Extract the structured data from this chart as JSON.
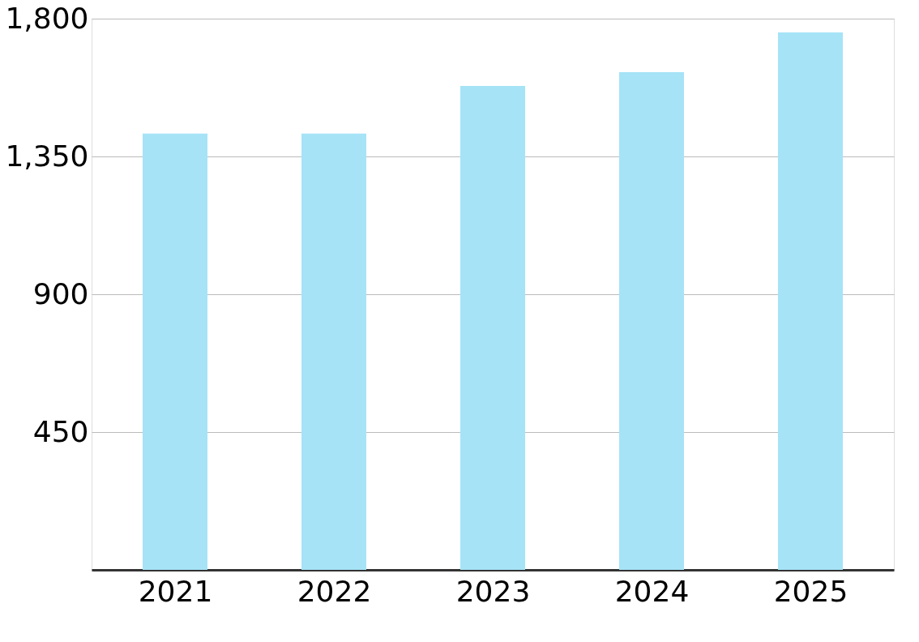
{
  "chart_data": {
    "type": "bar",
    "categories": [
      "2021",
      "2022",
      "2023",
      "2024",
      "2025"
    ],
    "values": [
      1425,
      1425,
      1580,
      1625,
      1755
    ],
    "color": "#a6e3f7",
    "ylim": [
      0,
      1800
    ],
    "yticks": [
      {
        "value": 0,
        "label": null
      },
      {
        "value": 450,
        "label": "450"
      },
      {
        "value": 900,
        "label": "900"
      },
      {
        "value": 1350,
        "label": "1,350"
      },
      {
        "value": 1800,
        "label": "1,800"
      }
    ],
    "grid": "y"
  }
}
